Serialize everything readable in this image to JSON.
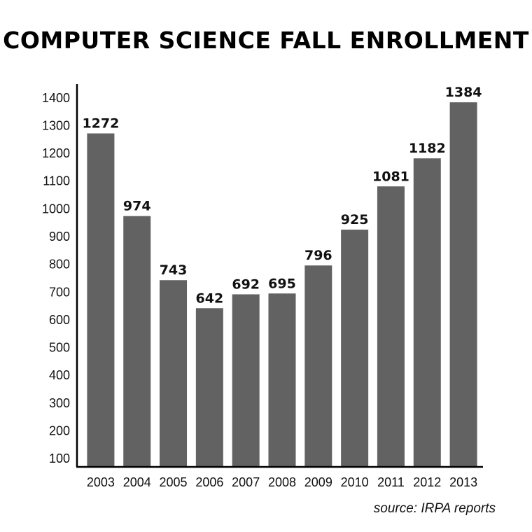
{
  "chart_data": {
    "type": "bar",
    "title": "COMPUTER SCIENCE FALL ENROLLMENT",
    "categories": [
      "2003",
      "2004",
      "2005",
      "2006",
      "2007",
      "2008",
      "2009",
      "2010",
      "2011",
      "2012",
      "2013"
    ],
    "values": [
      1272,
      974,
      743,
      642,
      692,
      695,
      796,
      925,
      1081,
      1182,
      1384
    ],
    "yticks": [
      100,
      200,
      300,
      400,
      500,
      600,
      700,
      800,
      900,
      1000,
      1100,
      1200,
      1300,
      1400
    ],
    "ylim": [
      70,
      1450
    ],
    "grid": false,
    "bar_color": "#626262",
    "axis_color": "#000000",
    "source": "source: IRPA reports"
  }
}
